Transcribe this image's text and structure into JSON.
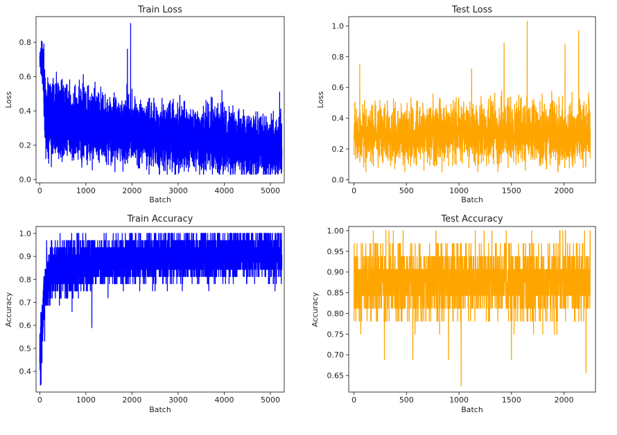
{
  "chart_data": [
    {
      "id": "train-loss",
      "type": "line",
      "title": "Train Loss",
      "xlabel": "Batch",
      "ylabel": "Loss",
      "xlim": [
        -80,
        5300
      ],
      "ylim": [
        -0.02,
        0.95
      ],
      "xticks": [
        0,
        1000,
        2000,
        3000,
        4000,
        5000
      ],
      "yticks": [
        0.0,
        0.2,
        0.4,
        0.6,
        0.8
      ],
      "ytick_decimals": 1,
      "grid": false,
      "series": [
        {
          "color": "#0000ff",
          "n_points": 5250,
          "x_range": [
            0,
            5250
          ],
          "seed": 11,
          "profile": [
            [
              0,
              0.7
            ],
            [
              60,
              0.68
            ],
            [
              150,
              0.36
            ],
            [
              600,
              0.33
            ],
            [
              1500,
              0.3
            ],
            [
              3000,
              0.24
            ],
            [
              4500,
              0.21
            ],
            [
              5250,
              0.19
            ]
          ],
          "spread": [
            [
              0,
              0.04
            ],
            [
              150,
              0.16
            ],
            [
              1500,
              0.13
            ],
            [
              5250,
              0.12
            ]
          ],
          "clip": [
            0.03,
            0.91
          ],
          "peaks": [
            [
              1970,
              0.91
            ],
            [
              1900,
              0.76
            ],
            [
              90,
              0.79
            ],
            [
              3950,
              0.52
            ],
            [
              5200,
              0.51
            ]
          ]
        }
      ]
    },
    {
      "id": "test-loss",
      "type": "line",
      "title": "Test Loss",
      "xlabel": "Batch",
      "ylabel": "Loss",
      "xlim": [
        -50,
        2300
      ],
      "ylim": [
        -0.02,
        1.06
      ],
      "xticks": [
        0,
        500,
        1000,
        1500,
        2000
      ],
      "yticks": [
        0.0,
        0.2,
        0.4,
        0.6,
        0.8,
        1.0
      ],
      "ytick_decimals": 1,
      "grid": false,
      "series": [
        {
          "color": "#ffa500",
          "n_points": 2250,
          "x_range": [
            0,
            2250
          ],
          "seed": 23,
          "profile": [
            [
              0,
              0.3
            ],
            [
              1000,
              0.3
            ],
            [
              2250,
              0.3
            ]
          ],
          "spread": [
            [
              0,
              0.13
            ],
            [
              2250,
              0.15
            ]
          ],
          "clip": [
            0.05,
            1.03
          ],
          "peaks": [
            [
              1650,
              1.03
            ],
            [
              2140,
              0.97
            ],
            [
              1430,
              0.89
            ],
            [
              2010,
              0.88
            ],
            [
              55,
              0.75
            ],
            [
              1120,
              0.72
            ]
          ]
        }
      ]
    },
    {
      "id": "train-accuracy",
      "type": "line",
      "title": "Train Accuracy",
      "xlabel": "Batch",
      "ylabel": "Accuracy",
      "xlim": [
        -80,
        5300
      ],
      "ylim": [
        0.31,
        1.03
      ],
      "xticks": [
        0,
        1000,
        2000,
        3000,
        4000,
        5000
      ],
      "yticks": [
        0.4,
        0.5,
        0.6,
        0.7,
        0.8,
        0.9,
        1.0
      ],
      "ytick_decimals": 1,
      "grid": false,
      "series": [
        {
          "color": "#0000ff",
          "n_points": 5250,
          "x_range": [
            0,
            5250
          ],
          "seed": 37,
          "profile": [
            [
              0,
              0.45
            ],
            [
              60,
              0.62
            ],
            [
              150,
              0.8
            ],
            [
              400,
              0.85
            ],
            [
              1500,
              0.88
            ],
            [
              3000,
              0.9
            ],
            [
              5250,
              0.91
            ]
          ],
          "spread": [
            [
              0,
              0.1
            ],
            [
              150,
              0.09
            ],
            [
              1500,
              0.07
            ],
            [
              5250,
              0.07
            ]
          ],
          "clip": [
            0.34,
            1.0
          ],
          "quantize": 32,
          "troughs": [
            [
              15,
              0.34
            ],
            [
              1130,
              0.59
            ],
            [
              700,
              0.66
            ],
            [
              1480,
              0.72
            ],
            [
              2500,
              0.75
            ]
          ]
        }
      ]
    },
    {
      "id": "test-accuracy",
      "type": "line",
      "title": "Test Accuracy",
      "xlabel": "Batch",
      "ylabel": "Accuracy",
      "xlim": [
        -50,
        2300
      ],
      "ylim": [
        0.61,
        1.01
      ],
      "xticks": [
        0,
        500,
        1000,
        1500,
        2000
      ],
      "yticks": [
        0.65,
        0.7,
        0.75,
        0.8,
        0.85,
        0.9,
        0.95,
        1.0
      ],
      "ytick_decimals": 2,
      "grid": false,
      "series": [
        {
          "color": "#ffa500",
          "n_points": 2250,
          "x_range": [
            0,
            2250
          ],
          "seed": 51,
          "profile": [
            [
              0,
              0.875
            ],
            [
              2250,
              0.875
            ]
          ],
          "spread": [
            [
              0,
              0.065
            ],
            [
              2250,
              0.065
            ]
          ],
          "clip": [
            0.625,
            1.0
          ],
          "quantize": 32,
          "troughs": [
            [
              1020,
              0.625
            ],
            [
              2210,
              0.656
            ],
            [
              290,
              0.688
            ],
            [
              560,
              0.688
            ],
            [
              900,
              0.688
            ],
            [
              1500,
              0.688
            ]
          ]
        }
      ]
    }
  ]
}
